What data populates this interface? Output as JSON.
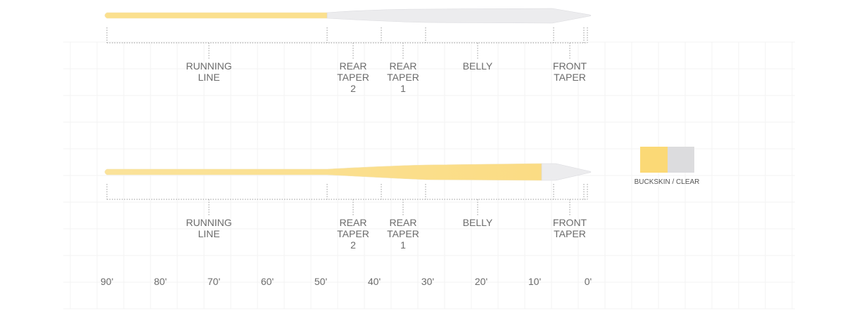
{
  "lines": [
    {
      "sections": [
        {
          "label": [
            "RUNNING",
            "LINE"
          ]
        },
        {
          "label": [
            "REAR",
            "TAPER",
            "2"
          ]
        },
        {
          "label": [
            "REAR",
            "TAPER",
            "1"
          ]
        },
        {
          "label": [
            "BELLY"
          ]
        },
        {
          "label": [
            "FRONT",
            "TAPER"
          ]
        }
      ]
    },
    {
      "sections": [
        {
          "label": [
            "RUNNING",
            "LINE"
          ]
        },
        {
          "label": [
            "REAR",
            "TAPER",
            "2"
          ]
        },
        {
          "label": [
            "REAR",
            "TAPER",
            "1"
          ]
        },
        {
          "label": [
            "BELLY"
          ]
        },
        {
          "label": [
            "FRONT",
            "TAPER"
          ]
        }
      ]
    }
  ],
  "axis_labels": [
    "90'",
    "80'",
    "70'",
    "60'",
    "50'",
    "40'",
    "30'",
    "20'",
    "10'",
    "0'"
  ],
  "legend": {
    "label": "BUCKSKIN / CLEAR"
  }
}
